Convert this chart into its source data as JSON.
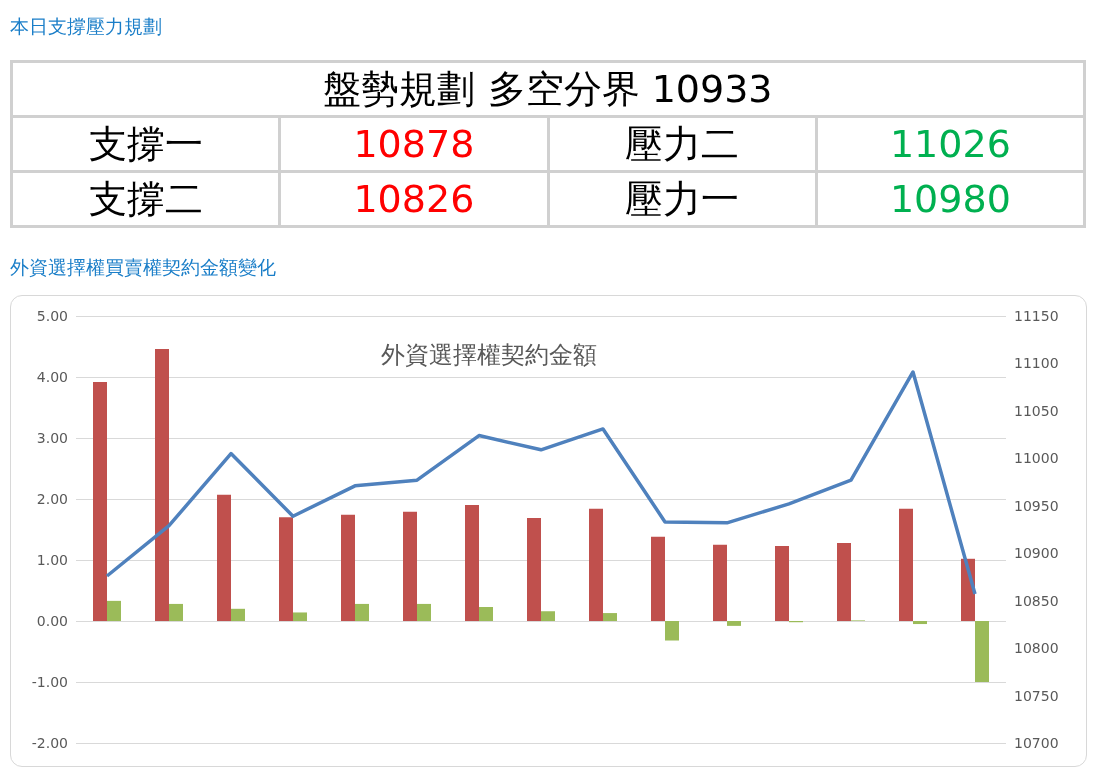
{
  "chart_data": [
    {
      "type": "other",
      "title": "本日支撐壓力規劃",
      "subtitle": "盤勢規劃 多空分界 10933",
      "annotations": [
        "支撐一",
        "10878",
        "壓力二",
        "11026",
        "支撐二",
        "10826",
        "壓力一",
        "10980"
      ],
      "colors": [
        "#000000",
        "#ff0000",
        "#000000",
        "#00b050",
        "#000000",
        "#ff0000",
        "#000000",
        "#00b050"
      ]
    },
    {
      "type": "bar",
      "title": "外資選擇權契約金額",
      "annotations": [
        "外資選擇權買賣權契約金額變化"
      ],
      "categories": [
        null,
        null,
        null,
        null,
        null,
        null,
        null,
        null,
        null,
        null,
        null,
        null,
        null,
        null,
        null
      ],
      "series": [
        {
          "type": "bar",
          "color": "#c0504d",
          "values": [
            3.92,
            4.46,
            2.07,
            1.7,
            1.74,
            1.79,
            1.9,
            1.69,
            1.84,
            1.38,
            1.25,
            1.23,
            1.28,
            1.84,
            1.02
          ]
        },
        {
          "type": "bar",
          "color": "#9bbb59",
          "values": [
            0.33,
            0.28,
            0.2,
            0.14,
            0.28,
            0.28,
            0.23,
            0.16,
            0.13,
            -0.32,
            -0.08,
            -0.02,
            0.01,
            -0.05,
            -1.0
          ]
        },
        {
          "type": "line",
          "axis": "y2",
          "color": "#4f81bd",
          "values": [
            10876,
            10929,
            11005,
            10939,
            10971,
            10977,
            11024,
            11009,
            11031,
            10933,
            10932,
            10952,
            10977,
            11091,
            10857
          ]
        }
      ],
      "ylim": [
        -2,
        5
      ],
      "yticks": [
        {
          "value": -2,
          "label": "-2.00"
        },
        {
          "value": -1,
          "label": "-1.00"
        },
        {
          "value": 0,
          "label": "0.00"
        },
        {
          "value": 1,
          "label": "1.00"
        },
        {
          "value": 2,
          "label": "2.00"
        },
        {
          "value": 3,
          "label": "3.00"
        },
        {
          "value": 4,
          "label": "4.00"
        },
        {
          "value": 5,
          "label": "5.00"
        }
      ],
      "y2lim": [
        10700,
        11150
      ],
      "y2ticks": [
        10700,
        10750,
        10800,
        10850,
        10900,
        10950,
        11000,
        11050,
        11100,
        11150
      ],
      "grid": "y",
      "marker": "none",
      "line_style": "solid"
    }
  ]
}
